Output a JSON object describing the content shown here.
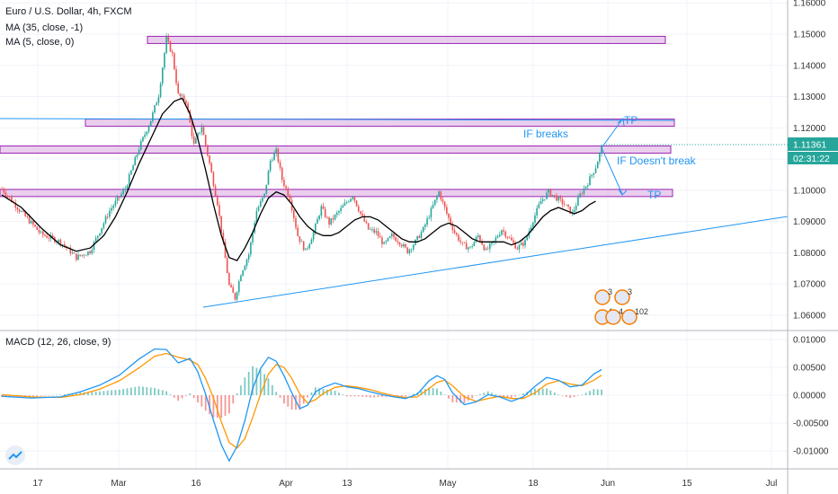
{
  "legend": {
    "title": "Euro / U.S. Dollar, 4h, FXCM",
    "ma1": "MA (35, close, -1)",
    "ma2": "MA (5, close, 0)",
    "macd": "MACD (12, 26, close, 9)"
  },
  "price_badge": {
    "price": "1.11361",
    "countdown": "02:31:22"
  },
  "annotations": {
    "if_breaks": "IF breaks",
    "if_doesnt_break": "IF Doesn't break",
    "tp_upper": "TP",
    "tp_lower": "TP"
  },
  "event_markers": [
    "3",
    "3",
    "4",
    "4",
    "102"
  ],
  "colors": {
    "up": "#26a69a",
    "down": "#ef5350",
    "ma_slow": "#000000",
    "macd_line": "#2196f3",
    "signal_line": "#ff9800",
    "zone_fill": "#e1bee7",
    "zone_border": "#9c27b0",
    "annotation": "#2196f3",
    "price_badge": "#26a69a"
  },
  "chart_data": [
    {
      "type": "candlestick",
      "title": "Euro / U.S. Dollar, 4h, FXCM",
      "ylim": [
        1.055,
        1.162
      ],
      "y_ticks": [
        "1.16000",
        "1.15000",
        "1.14000",
        "1.13000",
        "1.12000",
        "1.11000",
        "1.10000",
        "1.09000",
        "1.08000",
        "1.07000",
        "1.06000"
      ],
      "x_ticks": [
        "17",
        "Mar",
        "16",
        "Apr",
        "13",
        "May",
        "18",
        "Jun",
        "15",
        "Jul"
      ],
      "price_path": [
        [
          0,
          1.1005
        ],
        [
          10,
          1.093
        ],
        [
          20,
          1.086
        ],
        [
          30,
          1.0835
        ],
        [
          38,
          1.0785
        ],
        [
          45,
          1.0805
        ],
        [
          55,
          1.0935
        ],
        [
          63,
          1.1005
        ],
        [
          70,
          1.1135
        ],
        [
          76,
          1.1225
        ],
        [
          80,
          1.1305
        ],
        [
          84,
          1.1485
        ],
        [
          87,
          1.1435
        ],
        [
          90,
          1.1305
        ],
        [
          94,
          1.1285
        ],
        [
          98,
          1.1145
        ],
        [
          102,
          1.1205
        ],
        [
          106,
          1.1085
        ],
        [
          110,
          1.096
        ],
        [
          113,
          1.0825
        ],
        [
          116,
          1.0695
        ],
        [
          119,
          1.0655
        ],
        [
          122,
          1.0735
        ],
        [
          126,
          1.0795
        ],
        [
          130,
          1.0935
        ],
        [
          134,
          1.0985
        ],
        [
          137,
          1.1095
        ],
        [
          140,
          1.1125
        ],
        [
          143,
          1.1035
        ],
        [
          147,
          1.0975
        ],
        [
          151,
          1.0855
        ],
        [
          155,
          1.0805
        ],
        [
          159,
          1.0865
        ],
        [
          163,
          1.0945
        ],
        [
          167,
          1.0895
        ],
        [
          171,
          1.0925
        ],
        [
          175,
          1.0955
        ],
        [
          179,
          1.0985
        ],
        [
          183,
          1.0925
        ],
        [
          187,
          1.0875
        ],
        [
          191,
          1.0865
        ],
        [
          195,
          1.0825
        ],
        [
          199,
          1.0855
        ],
        [
          203,
          1.0835
        ],
        [
          207,
          1.0805
        ],
        [
          211,
          1.0835
        ],
        [
          215,
          1.0875
        ],
        [
          219,
          1.0935
        ],
        [
          223,
          1.0995
        ],
        [
          227,
          1.0925
        ],
        [
          231,
          1.0865
        ],
        [
          235,
          1.0825
        ],
        [
          239,
          1.0815
        ],
        [
          243,
          1.0855
        ],
        [
          247,
          1.0805
        ],
        [
          251,
          1.0835
        ],
        [
          255,
          1.0875
        ],
        [
          259,
          1.0845
        ],
        [
          263,
          1.0815
        ],
        [
          267,
          1.0835
        ],
        [
          271,
          1.0905
        ],
        [
          275,
          1.0965
        ],
        [
          279,
          1.0995
        ],
        [
          283,
          1.0975
        ],
        [
          287,
          1.0955
        ],
        [
          291,
          1.0925
        ],
        [
          295,
          1.0985
        ],
        [
          299,
          1.1025
        ],
        [
          303,
          1.1075
        ],
        [
          306,
          1.1136
        ]
      ],
      "ma_35_path": [
        [
          0,
          1.0985
        ],
        [
          10,
          1.0945
        ],
        [
          20,
          1.088
        ],
        [
          30,
          1.0825
        ],
        [
          38,
          1.0805
        ],
        [
          45,
          1.0815
        ],
        [
          52,
          1.0855
        ],
        [
          58,
          1.0915
        ],
        [
          64,
          1.0995
        ],
        [
          70,
          1.1085
        ],
        [
          76,
          1.1165
        ],
        [
          82,
          1.1245
        ],
        [
          88,
          1.1285
        ],
        [
          92,
          1.1295
        ],
        [
          96,
          1.1245
        ],
        [
          100,
          1.1165
        ],
        [
          104,
          1.1065
        ],
        [
          108,
          1.0955
        ],
        [
          112,
          1.0855
        ],
        [
          116,
          1.0785
        ],
        [
          120,
          1.0775
        ],
        [
          124,
          1.0815
        ],
        [
          128,
          1.0865
        ],
        [
          132,
          1.0925
        ],
        [
          136,
          1.0975
        ],
        [
          140,
          1.0995
        ],
        [
          144,
          1.0985
        ],
        [
          148,
          1.0955
        ],
        [
          152,
          1.0915
        ],
        [
          156,
          1.0885
        ],
        [
          160,
          1.0865
        ],
        [
          164,
          1.0855
        ],
        [
          168,
          1.0855
        ],
        [
          172,
          1.0865
        ],
        [
          176,
          1.0885
        ],
        [
          180,
          1.0905
        ],
        [
          184,
          1.0915
        ],
        [
          188,
          1.0915
        ],
        [
          192,
          1.0905
        ],
        [
          196,
          1.0885
        ],
        [
          200,
          1.0865
        ],
        [
          204,
          1.0845
        ],
        [
          208,
          1.0835
        ],
        [
          212,
          1.0835
        ],
        [
          216,
          1.0845
        ],
        [
          220,
          1.0865
        ],
        [
          224,
          1.0885
        ],
        [
          228,
          1.0895
        ],
        [
          232,
          1.0885
        ],
        [
          236,
          1.0865
        ],
        [
          240,
          1.0845
        ],
        [
          244,
          1.0835
        ],
        [
          248,
          1.0835
        ],
        [
          252,
          1.0835
        ],
        [
          256,
          1.0835
        ],
        [
          260,
          1.0825
        ],
        [
          264,
          1.0835
        ],
        [
          268,
          1.0855
        ],
        [
          272,
          1.0885
        ],
        [
          276,
          1.0915
        ],
        [
          280,
          1.0935
        ],
        [
          284,
          1.0945
        ],
        [
          288,
          1.0935
        ],
        [
          292,
          1.0925
        ],
        [
          296,
          1.0935
        ],
        [
          300,
          1.0955
        ],
        [
          303,
          1.0965
        ]
      ],
      "zones": [
        {
          "name": "zone-1.149",
          "y_top": 1.1493,
          "y_bottom": 1.1478
        },
        {
          "name": "zone-1.122",
          "y_top": 1.1228,
          "y_bottom": 1.1216
        },
        {
          "name": "zone-1.113",
          "y_top": 1.1142,
          "y_bottom": 1.1122
        },
        {
          "name": "zone-1.100",
          "y_top": 1.1003,
          "y_bottom": 1.0987
        }
      ]
    },
    {
      "type": "line",
      "title": "MACD (12, 26, close, 9)",
      "ylim": [
        -0.0128,
        0.0112
      ],
      "y_ticks": [
        "0.01000",
        "0.00500",
        "0.00000",
        "-0.00500",
        "-0.01000"
      ],
      "series": [
        {
          "name": "MACD",
          "values": [
            [
              0,
              -0.0002
            ],
            [
              15,
              -0.0005
            ],
            [
              30,
              -0.0003
            ],
            [
              40,
              0.0006
            ],
            [
              50,
              0.0018
            ],
            [
              60,
              0.0036
            ],
            [
              70,
              0.0065
            ],
            [
              78,
              0.0083
            ],
            [
              84,
              0.0082
            ],
            [
              90,
              0.0058
            ],
            [
              96,
              0.0066
            ],
            [
              100,
              0.0042
            ],
            [
              104,
              0.0002
            ],
            [
              108,
              -0.0045
            ],
            [
              112,
              -0.0089
            ],
            [
              116,
              -0.0118
            ],
            [
              120,
              -0.0092
            ],
            [
              124,
              -0.0046
            ],
            [
              128,
              0.0012
            ],
            [
              132,
              0.0048
            ],
            [
              136,
              0.0068
            ],
            [
              140,
              0.0061
            ],
            [
              144,
              0.0035
            ],
            [
              148,
              0.0004
            ],
            [
              152,
              -0.0024
            ],
            [
              156,
              -0.0018
            ],
            [
              160,
              0.0006
            ],
            [
              164,
              0.0014
            ],
            [
              170,
              0.0022
            ],
            [
              176,
              0.0015
            ],
            [
              182,
              0.0012
            ],
            [
              188,
              0.0006
            ],
            [
              194,
              0.0001
            ],
            [
              200,
              -0.0003
            ],
            [
              206,
              -0.0006
            ],
            [
              212,
              0.0002
            ],
            [
              218,
              0.0026
            ],
            [
              222,
              0.0035
            ],
            [
              226,
              0.0028
            ],
            [
              230,
              0.0004
            ],
            [
              236,
              -0.0017
            ],
            [
              242,
              -0.0012
            ],
            [
              248,
              0.0001
            ],
            [
              254,
              -0.0003
            ],
            [
              260,
              -0.0011
            ],
            [
              266,
              -0.0003
            ],
            [
              272,
              0.0016
            ],
            [
              278,
              0.0032
            ],
            [
              284,
              0.0027
            ],
            [
              290,
              0.0015
            ],
            [
              296,
              0.0018
            ],
            [
              302,
              0.0038
            ],
            [
              306,
              0.0046
            ]
          ]
        },
        {
          "name": "Signal",
          "values": [
            [
              0,
              0.0001
            ],
            [
              15,
              -0.0003
            ],
            [
              30,
              -0.0004
            ],
            [
              40,
              0.0001
            ],
            [
              50,
              0.0011
            ],
            [
              60,
              0.0026
            ],
            [
              70,
              0.0049
            ],
            [
              78,
              0.007
            ],
            [
              84,
              0.0075
            ],
            [
              90,
              0.0068
            ],
            [
              96,
              0.0063
            ],
            [
              100,
              0.0055
            ],
            [
              104,
              0.003
            ],
            [
              108,
              -0.0005
            ],
            [
              112,
              -0.0048
            ],
            [
              116,
              -0.0085
            ],
            [
              120,
              -0.0095
            ],
            [
              124,
              -0.0078
            ],
            [
              128,
              -0.004
            ],
            [
              132,
              0.0002
            ],
            [
              136,
              0.0038
            ],
            [
              140,
              0.0055
            ],
            [
              144,
              0.005
            ],
            [
              148,
              0.003
            ],
            [
              152,
              0.0002
            ],
            [
              156,
              -0.0014
            ],
            [
              160,
              -0.0008
            ],
            [
              164,
              0.0003
            ],
            [
              170,
              0.0014
            ],
            [
              176,
              0.0017
            ],
            [
              182,
              0.0014
            ],
            [
              188,
              0.001
            ],
            [
              194,
              0.0004
            ],
            [
              200,
              -0.0001
            ],
            [
              206,
              -0.0004
            ],
            [
              212,
              -0.0003
            ],
            [
              218,
              0.0012
            ],
            [
              222,
              0.0023
            ],
            [
              226,
              0.0027
            ],
            [
              230,
              0.0017
            ],
            [
              236,
              -0.0003
            ],
            [
              242,
              -0.0011
            ],
            [
              248,
              -0.0006
            ],
            [
              254,
              -0.0002
            ],
            [
              260,
              -0.0006
            ],
            [
              266,
              -0.0006
            ],
            [
              272,
              0.0004
            ],
            [
              278,
              0.002
            ],
            [
              284,
              0.0026
            ],
            [
              290,
              0.002
            ],
            [
              296,
              0.0017
            ],
            [
              302,
              0.0027
            ],
            [
              306,
              0.0036
            ]
          ]
        }
      ]
    }
  ]
}
